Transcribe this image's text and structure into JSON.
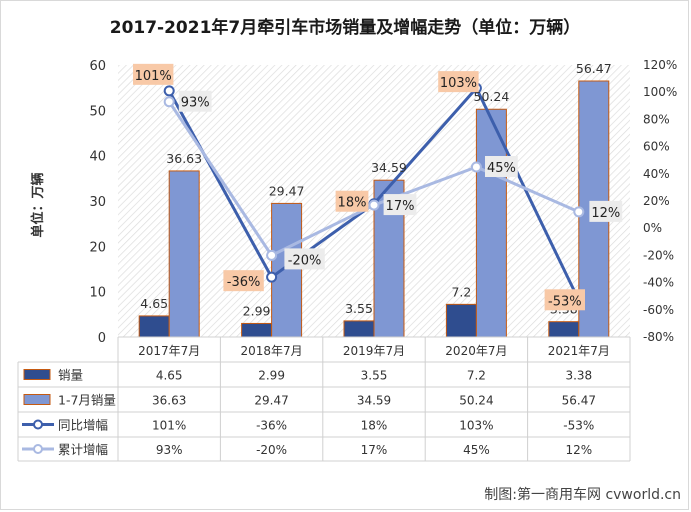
{
  "chart_data": {
    "type": "bar+line",
    "title": "2017-2021年7月牵引车市场销量及增幅走势（单位：万辆）",
    "ylabel": "单位：万辆",
    "ylim": [
      0,
      60
    ],
    "y_ticks": [
      "0",
      "10",
      "20",
      "30",
      "40",
      "50",
      "60"
    ],
    "y2lim": [
      -80,
      120
    ],
    "y2_ticks": [
      "-80%",
      "-60%",
      "-40%",
      "-20%",
      "0%",
      "20%",
      "40%",
      "60%",
      "80%",
      "100%",
      "120%"
    ],
    "categories": [
      "2017年7月",
      "2018年7月",
      "2019年7月",
      "2020年7月",
      "2021年7月"
    ],
    "series": [
      {
        "name": "销量",
        "kind": "bar",
        "axis": "left",
        "color": "#2f4d8f",
        "values": [
          4.65,
          2.99,
          3.55,
          7.2,
          3.38
        ],
        "labels": [
          "4.65",
          "2.99",
          "3.55",
          "7.2",
          "3.38"
        ]
      },
      {
        "name": "1-7月销量",
        "kind": "bar",
        "axis": "left",
        "color": "#7f97d3",
        "values": [
          36.63,
          29.47,
          34.59,
          50.24,
          56.47
        ],
        "labels": [
          "36.63",
          "29.47",
          "34.59",
          "50.24",
          "56.47"
        ]
      },
      {
        "name": "同比增幅",
        "kind": "line",
        "axis": "right",
        "color": "#3d5fac",
        "values": [
          101,
          -36,
          18,
          103,
          -53
        ],
        "labels": [
          "101%",
          "-36%",
          "18%",
          "103%",
          "-53%"
        ]
      },
      {
        "name": "累计增幅",
        "kind": "line",
        "axis": "right",
        "color": "#a9b9e2",
        "values": [
          93,
          -20,
          17,
          45,
          12
        ],
        "labels": [
          "93%",
          "-20%",
          "17%",
          "45%",
          "12%"
        ]
      }
    ],
    "legend": "data-table-below",
    "grid": false
  },
  "footer": "制图:第一商用车网 cvworld.cn"
}
